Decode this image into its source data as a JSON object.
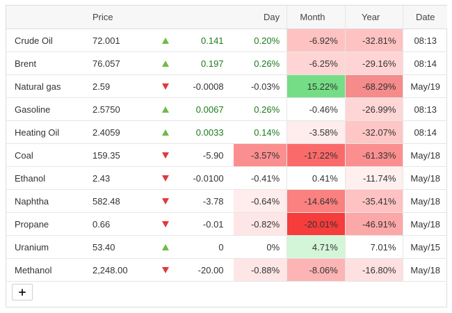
{
  "headers": {
    "name": "",
    "price": "Price",
    "arrow": "",
    "change": "",
    "day": "Day",
    "month": "Month",
    "year": "Year",
    "date": "Date"
  },
  "colors": {
    "up_arrow": "#6dbb45",
    "down_arrow": "#e03a3a",
    "positive_text": "#1a7a1a"
  },
  "rows": [
    {
      "name": "Crude Oil",
      "price": "72.001",
      "dir": "up",
      "change": "0.141",
      "day": "0.20%",
      "month": "-6.92%",
      "year": "-32.81%",
      "date": "08:13",
      "day_bg": "#ffffff",
      "month_bg": "#ffc2c2",
      "year_bg": "#ffc2c2",
      "pos_change": true,
      "pos_day": true
    },
    {
      "name": "Brent",
      "price": "76.057",
      "dir": "up",
      "change": "0.197",
      "day": "0.26%",
      "month": "-6.25%",
      "year": "-29.16%",
      "date": "08:14",
      "day_bg": "#ffffff",
      "month_bg": "#ffd4d4",
      "year_bg": "#ffd4d4",
      "pos_change": true,
      "pos_day": true
    },
    {
      "name": "Natural gas",
      "price": "2.59",
      "dir": "down",
      "change": "-0.0008",
      "day": "-0.03%",
      "month": "15.22%",
      "year": "-68.29%",
      "date": "May/19",
      "day_bg": "#ffffff",
      "month_bg": "#74dd85",
      "year_bg": "#f58b8b",
      "pos_change": false,
      "pos_day": false
    },
    {
      "name": "Gasoline",
      "price": "2.5750",
      "dir": "up",
      "change": "0.0067",
      "day": "0.26%",
      "month": "-0.46%",
      "year": "-26.99%",
      "date": "08:13",
      "day_bg": "#ffffff",
      "month_bg": "#ffffff",
      "year_bg": "#ffd6d6",
      "pos_change": true,
      "pos_day": true
    },
    {
      "name": "Heating Oil",
      "price": "2.4059",
      "dir": "up",
      "change": "0.0033",
      "day": "0.14%",
      "month": "-3.58%",
      "year": "-32.07%",
      "date": "08:14",
      "day_bg": "#ffffff",
      "month_bg": "#ffecec",
      "year_bg": "#ffc6c6",
      "pos_change": true,
      "pos_day": true
    },
    {
      "name": "Coal",
      "price": "159.35",
      "dir": "down",
      "change": "-5.90",
      "day": "-3.57%",
      "month": "-17.22%",
      "year": "-61.33%",
      "date": "May/18",
      "day_bg": "#fb8f8f",
      "month_bg": "#fb6a6a",
      "year_bg": "#fb8f8f",
      "pos_change": false,
      "pos_day": false
    },
    {
      "name": "Ethanol",
      "price": "2.43",
      "dir": "down",
      "change": "-0.0100",
      "day": "-0.41%",
      "month": "0.41%",
      "year": "-11.74%",
      "date": "May/18",
      "day_bg": "#ffffff",
      "month_bg": "#ffffff",
      "year_bg": "#ffefef",
      "pos_change": false,
      "pos_day": false
    },
    {
      "name": "Naphtha",
      "price": "582.48",
      "dir": "down",
      "change": "-3.78",
      "day": "-0.64%",
      "month": "-14.64%",
      "year": "-35.41%",
      "date": "May/18",
      "day_bg": "#ffecec",
      "month_bg": "#fb8080",
      "year_bg": "#ffc2c2",
      "pos_change": false,
      "pos_day": false
    },
    {
      "name": "Propane",
      "price": "0.66",
      "dir": "down",
      "change": "-0.01",
      "day": "-0.82%",
      "month": "-20.01%",
      "year": "-46.91%",
      "date": "May/18",
      "day_bg": "#ffe6e6",
      "month_bg": "#f73c3c",
      "year_bg": "#fca8a8",
      "pos_change": false,
      "pos_day": false
    },
    {
      "name": "Uranium",
      "price": "53.40",
      "dir": "up",
      "change": "0",
      "day": "0%",
      "month": "4.71%",
      "year": "7.01%",
      "date": "May/15",
      "day_bg": "#ffffff",
      "month_bg": "#d4f6d8",
      "year_bg": "#ffffff",
      "pos_change": false,
      "pos_day": false
    },
    {
      "name": "Methanol",
      "price": "2,248.00",
      "dir": "down",
      "change": "-20.00",
      "day": "-0.88%",
      "month": "-8.06%",
      "year": "-16.80%",
      "date": "May/18",
      "day_bg": "#ffe6e6",
      "month_bg": "#fcb4b4",
      "year_bg": "#ffe0e0",
      "pos_change": false,
      "pos_day": false
    }
  ],
  "add_button_label": "+"
}
